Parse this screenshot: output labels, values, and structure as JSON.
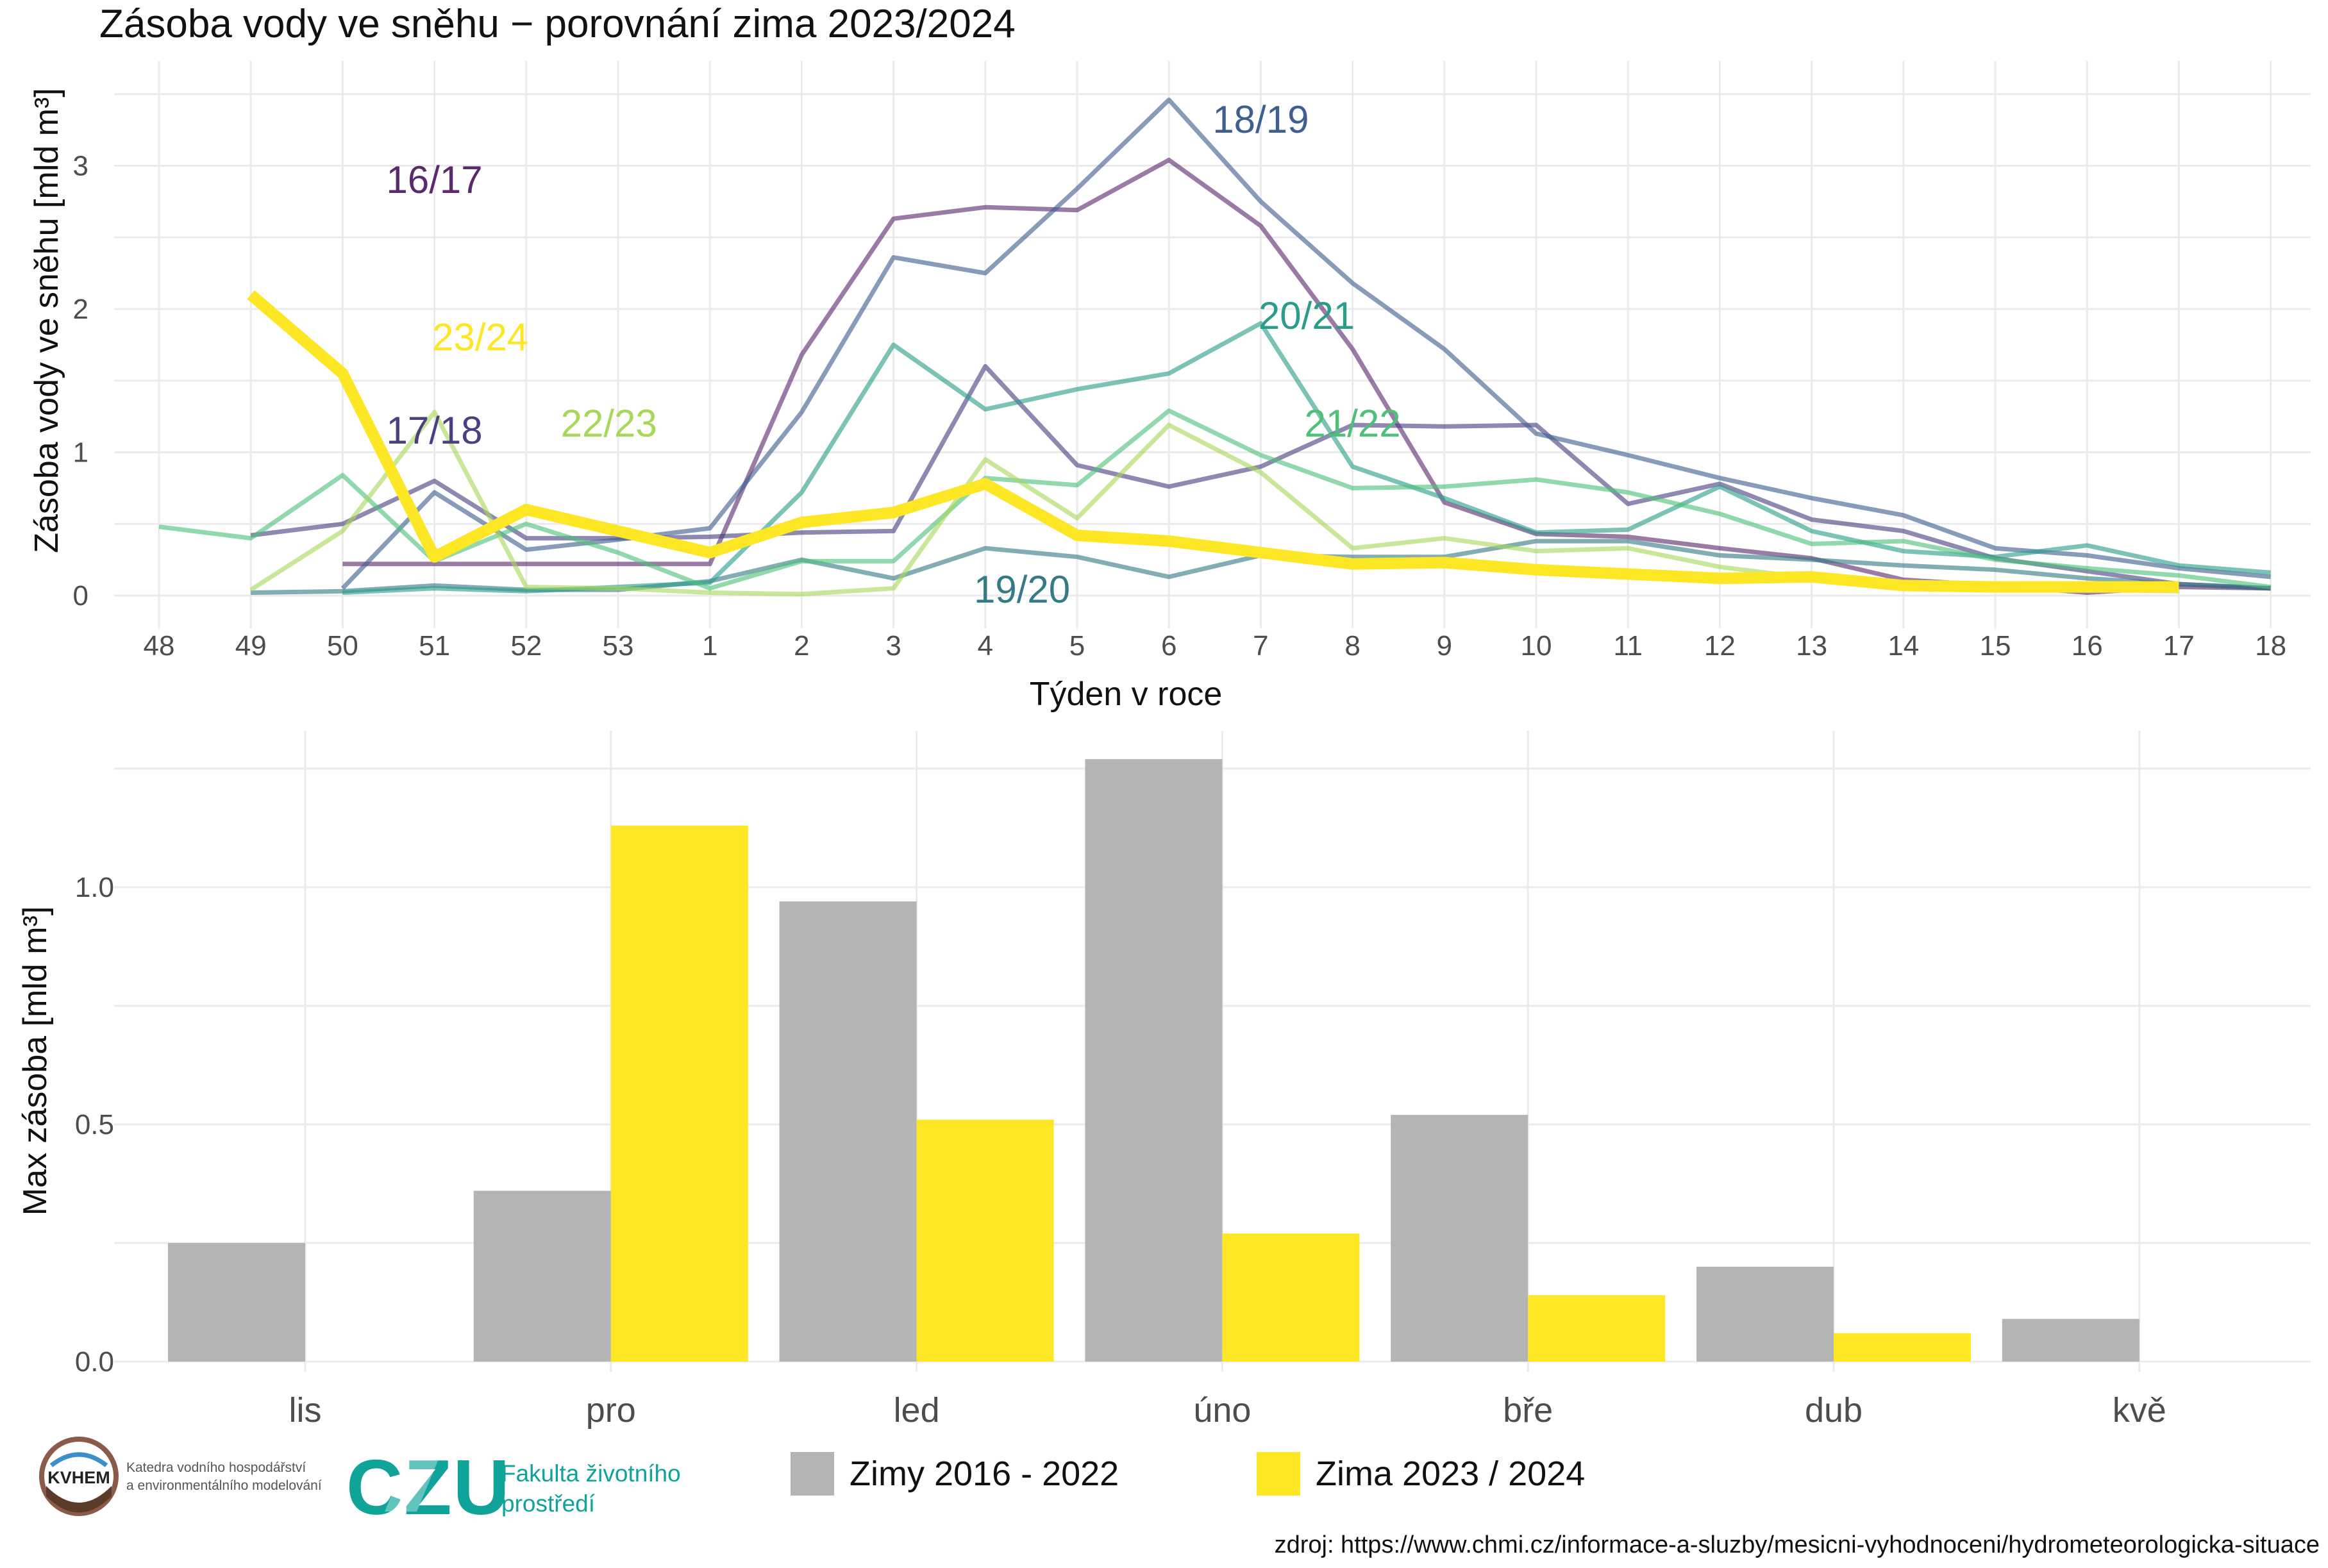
{
  "title": "Zásoba vody ve sněhu − porovnání zima 2023/2024",
  "source_label": "zdroj: https://www.chmi.cz/informace-a-sluzby/mesicni-vyhodnoceni/hydrometeorologicka-situace",
  "logos": {
    "kvhem_badge": "KVHEM",
    "kvhem_line1": "Katedra vodního hospodářství",
    "kvhem_line2": "a environmentálního modelování",
    "czu_mark": "CZU",
    "czu_line1": "Fakulta životního",
    "czu_line2": "prostředí"
  },
  "colors": {
    "s1617": "#5a2a6e",
    "s1718": "#4a3f7f",
    "s1819": "#3f5f8f",
    "s1920": "#357a85",
    "s2021": "#2a9d8a",
    "s2122": "#4ec07a",
    "s2223": "#a6d85a",
    "s2324": "#fde725",
    "bar_past": "#b4b4b4",
    "bar_current": "#fde725",
    "grid": "#ebebeb",
    "axis_text": "#4d4d4d"
  },
  "chart_data": [
    {
      "type": "line",
      "title": "Zásoba vody ve sněhu − porovnání zima 2023/2024",
      "xlabel": "Týden v roce",
      "ylabel": "Zásoba vody ve sněhu [mld m³]",
      "categories": [
        "48",
        "49",
        "50",
        "51",
        "52",
        "53",
        "1",
        "2",
        "3",
        "4",
        "5",
        "6",
        "7",
        "8",
        "9",
        "10",
        "11",
        "12",
        "13",
        "14",
        "15",
        "16",
        "17",
        "18"
      ],
      "yticks": [
        0,
        1,
        2,
        3
      ],
      "ylim": [
        -0.05,
        3.6
      ],
      "grid": true,
      "series": [
        {
          "name": "16/17",
          "color_key": "s1617",
          "label_at": 3,
          "label_value": 2.9,
          "values": [
            null,
            null,
            0.22,
            0.22,
            0.22,
            0.22,
            0.22,
            1.68,
            2.63,
            2.71,
            2.69,
            3.04,
            2.58,
            1.72,
            0.65,
            0.43,
            0.41,
            0.33,
            0.26,
            0.11,
            0.07,
            0.02,
            0.06,
            0.05
          ]
        },
        {
          "name": "17/18",
          "color_key": "s1718",
          "label_at": 3,
          "label_value": 1.15,
          "values": [
            null,
            0.42,
            0.5,
            0.8,
            0.4,
            0.4,
            0.41,
            0.44,
            0.45,
            1.6,
            0.91,
            0.76,
            0.9,
            1.19,
            1.18,
            1.19,
            0.64,
            0.78,
            0.53,
            0.45,
            0.26,
            0.17,
            0.08,
            0.05
          ]
        },
        {
          "name": "18/19",
          "color_key": "s1819",
          "label_at": 12,
          "label_value": 3.32,
          "values": [
            null,
            null,
            0.05,
            0.72,
            0.32,
            0.39,
            0.47,
            1.28,
            2.36,
            2.25,
            2.84,
            3.46,
            2.75,
            2.18,
            1.72,
            1.13,
            0.98,
            0.82,
            0.68,
            0.56,
            0.33,
            0.28,
            0.19,
            0.13
          ]
        },
        {
          "name": "19/20",
          "color_key": "s1920",
          "label_at": 9.4,
          "label_value": 0.04,
          "values": [
            null,
            0.02,
            0.03,
            0.07,
            0.04,
            0.04,
            0.1,
            0.25,
            0.12,
            0.33,
            0.27,
            0.13,
            0.28,
            0.27,
            0.27,
            0.38,
            0.38,
            0.28,
            0.25,
            0.21,
            0.18,
            0.12,
            0.08,
            0.05
          ]
        },
        {
          "name": "20/21",
          "color_key": "s2021",
          "label_at": 12.5,
          "label_value": 1.95,
          "values": [
            null,
            null,
            0.02,
            0.05,
            0.03,
            0.06,
            0.09,
            0.72,
            1.75,
            1.3,
            1.44,
            1.55,
            1.9,
            0.9,
            0.68,
            0.44,
            0.46,
            0.76,
            0.45,
            0.31,
            0.27,
            0.35,
            0.21,
            0.16
          ]
        },
        {
          "name": "21/22",
          "color_key": "s2122",
          "label_at": 13.0,
          "label_value": 1.2,
          "values": [
            0.48,
            0.4,
            0.84,
            0.24,
            0.5,
            0.3,
            0.05,
            0.24,
            0.24,
            0.82,
            0.77,
            1.29,
            0.98,
            0.75,
            0.76,
            0.81,
            0.72,
            0.57,
            0.36,
            0.38,
            0.25,
            0.19,
            0.14,
            0.06
          ]
        },
        {
          "name": "22/23",
          "color_key": "s2223",
          "label_at": 4.9,
          "label_value": 1.2,
          "values": [
            null,
            0.04,
            0.45,
            1.28,
            0.06,
            0.05,
            0.02,
            0.01,
            0.05,
            0.95,
            0.54,
            1.19,
            0.86,
            0.33,
            0.4,
            0.31,
            0.33,
            0.2,
            0.12,
            0.06,
            0.04,
            0.04,
            0.03,
            null
          ]
        },
        {
          "name": "23/24",
          "color_key": "s2324",
          "label_at": 3.5,
          "label_value": 1.8,
          "values": [
            null,
            2.1,
            1.55,
            0.27,
            0.6,
            0.45,
            0.3,
            0.51,
            0.58,
            0.78,
            0.42,
            0.38,
            0.3,
            0.22,
            0.23,
            0.18,
            0.15,
            0.12,
            0.13,
            0.07,
            0.06,
            0.06,
            0.06,
            null
          ]
        }
      ]
    },
    {
      "type": "bar",
      "ylabel": "Max zásoba [mld m³]",
      "categories": [
        "lis",
        "pro",
        "led",
        "úno",
        "bře",
        "dub",
        "kvě"
      ],
      "yticks": [
        0.0,
        0.5,
        1.0
      ],
      "ytick_labels": [
        "0.0",
        "0.5",
        "1.0"
      ],
      "ylim": [
        0,
        1.3
      ],
      "grid": true,
      "legend_position": "bottom",
      "series": [
        {
          "name": "Zimy 2016 - 2022",
          "color_key": "bar_past",
          "values": [
            0.25,
            0.36,
            0.97,
            1.27,
            0.52,
            0.2,
            0.09
          ]
        },
        {
          "name": "Zima 2023 / 2024",
          "color_key": "bar_current",
          "values": [
            null,
            1.13,
            0.51,
            0.27,
            0.14,
            0.06,
            null
          ]
        }
      ]
    }
  ]
}
